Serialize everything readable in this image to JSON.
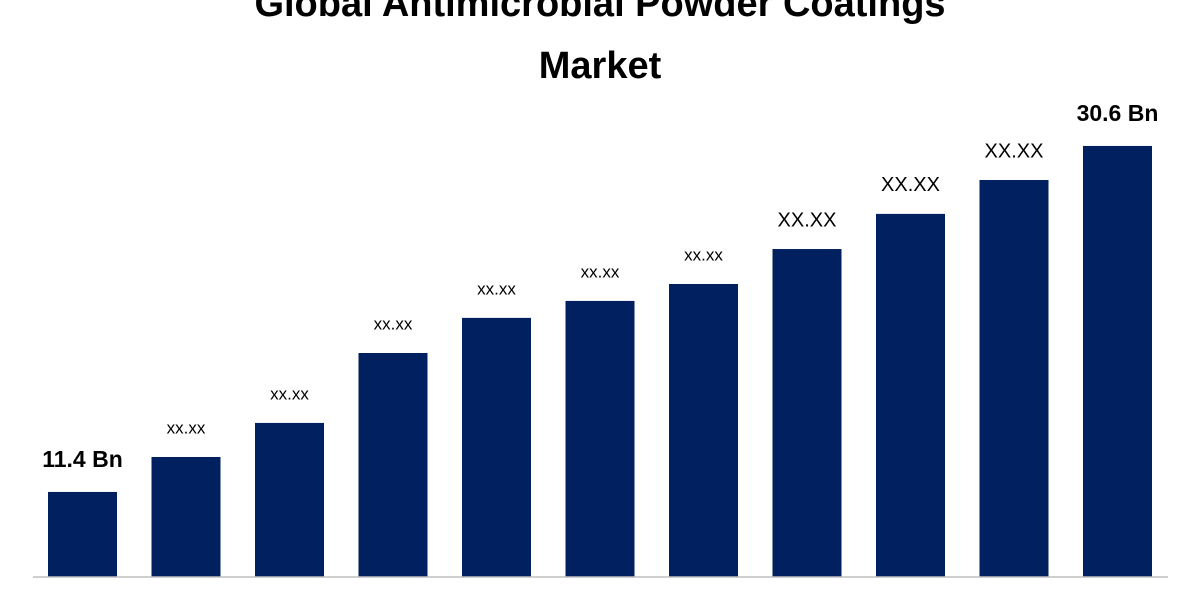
{
  "chart_data": {
    "type": "bar",
    "title": "Global Antimicrobial Powder Coatings Market",
    "values": [
      11.4,
      13.34,
      15.23,
      19.11,
      21.06,
      22.0,
      22.94,
      24.88,
      26.83,
      28.71,
      30.6
    ],
    "value_labels": [
      "11.4 Bn",
      "xx.xx",
      "xx.xx",
      "xx.xx",
      "xx.xx",
      "xx.xx",
      "xx.xx",
      "XX.XX",
      "XX.XX",
      "XX.XX",
      "30.6 Bn"
    ],
    "color": "#002060",
    "ylim": [
      6.68,
      33.15
    ]
  }
}
